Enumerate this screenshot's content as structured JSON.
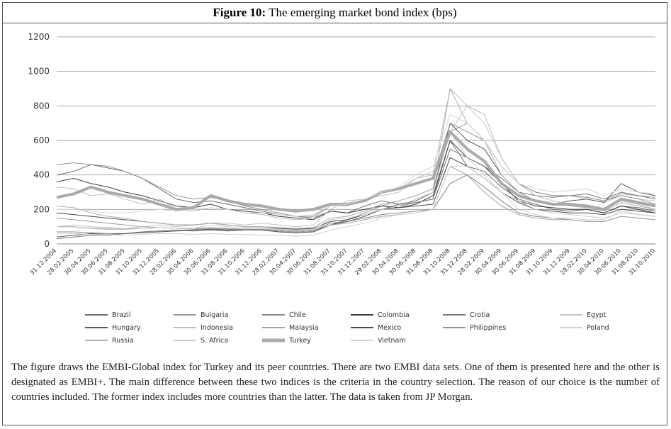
{
  "chart_data": {
    "type": "line",
    "figure_label": "Figure 10:",
    "title": "The emerging market bond index (bps)",
    "categories": [
      "31.12.2004",
      "28.02.2005",
      "30.04.2005",
      "30.06.2005",
      "31.08.2005",
      "31.10.2005",
      "31.12.2005",
      "28.02.2006",
      "30.04.2006",
      "30.06.2006",
      "31.08.2006",
      "31.10.2006",
      "31.12.2006",
      "28.02.2007",
      "30.04.2007",
      "30.06.2007",
      "31.08.2007",
      "31.10.2007",
      "31.12.2007",
      "29.02.2008",
      "30.04.2008",
      "30.06.2008",
      "31.08.2008",
      "31.10.2008",
      "31.12.2008",
      "28.02.2009",
      "30.04.2009",
      "30.06.2009",
      "31.08.2009",
      "31.10.2009",
      "31.12.2009",
      "28.02.2010",
      "30.04.2010",
      "30.06.2010",
      "31.08.2010",
      "31.10.2010"
    ],
    "ylim": [
      0,
      1200
    ],
    "yticks": [
      0,
      200,
      400,
      600,
      800,
      1000,
      1200
    ],
    "grid": true,
    "series": [
      {
        "name": "Brazil",
        "color": "#6e6e6e",
        "width": 1,
        "values": [
          400,
          420,
          460,
          440,
          420,
          380,
          320,
          260,
          240,
          250,
          230,
          210,
          190,
          170,
          160,
          150,
          190,
          180,
          220,
          250,
          230,
          240,
          260,
          600,
          450,
          420,
          330,
          260,
          230,
          200,
          190,
          200,
          180,
          220,
          210,
          190
        ]
      },
      {
        "name": "Bulgaria",
        "color": "#9a9a9a",
        "width": 1,
        "values": [
          150,
          140,
          130,
          120,
          110,
          100,
          95,
          90,
          85,
          90,
          85,
          80,
          80,
          75,
          70,
          75,
          110,
          140,
          180,
          220,
          250,
          280,
          320,
          650,
          700,
          600,
          450,
          350,
          300,
          280,
          280,
          270,
          250,
          290,
          280,
          270
        ]
      },
      {
        "name": "Chile",
        "color": "#888888",
        "width": 1,
        "values": [
          70,
          70,
          65,
          60,
          60,
          70,
          75,
          80,
          80,
          85,
          85,
          80,
          85,
          80,
          75,
          80,
          120,
          130,
          150,
          170,
          180,
          190,
          200,
          350,
          400,
          330,
          250,
          180,
          160,
          150,
          140,
          130,
          130,
          160,
          150,
          140
        ]
      },
      {
        "name": "Colombia",
        "color": "#3c3c3c",
        "width": 1,
        "values": [
          360,
          380,
          350,
          330,
          300,
          280,
          250,
          220,
          210,
          230,
          200,
          190,
          180,
          160,
          150,
          140,
          190,
          180,
          200,
          220,
          210,
          230,
          280,
          600,
          500,
          450,
          350,
          250,
          220,
          210,
          200,
          200,
          180,
          220,
          200,
          180
        ]
      },
      {
        "name": "Crotia",
        "color": "#7a7a7a",
        "width": 1,
        "values": [
          30,
          40,
          50,
          50,
          60,
          70,
          75,
          80,
          75,
          80,
          75,
          80,
          80,
          70,
          65,
          70,
          110,
          140,
          170,
          200,
          220,
          240,
          260,
          550,
          500,
          450,
          380,
          300,
          280,
          270,
          280,
          290,
          260,
          300,
          280,
          260
        ]
      },
      {
        "name": "Egypt",
        "color": "#c4c4c4",
        "width": 1,
        "values": [
          100,
          110,
          100,
          90,
          90,
          100,
          110,
          100,
          110,
          120,
          120,
          110,
          120,
          110,
          100,
          110,
          200,
          250,
          260,
          280,
          300,
          380,
          420,
          650,
          800,
          700,
          500,
          350,
          300,
          280,
          280,
          260,
          240,
          280,
          260,
          250
        ]
      },
      {
        "name": "Hungary",
        "color": "#5a5a5a",
        "width": 1,
        "values": [
          40,
          50,
          60,
          55,
          60,
          65,
          70,
          75,
          80,
          85,
          80,
          85,
          80,
          70,
          65,
          70,
          110,
          130,
          160,
          200,
          230,
          250,
          300,
          700,
          600,
          550,
          400,
          300,
          250,
          230,
          250,
          260,
          240,
          350,
          300,
          280
        ]
      },
      {
        "name": "Indonesia",
        "color": "#bdbdbd",
        "width": 1,
        "values": [
          330,
          320,
          280,
          290,
          260,
          230,
          260,
          200,
          190,
          210,
          200,
          180,
          170,
          150,
          140,
          150,
          220,
          220,
          250,
          300,
          320,
          380,
          400,
          900,
          800,
          750,
          500,
          350,
          280,
          250,
          230,
          220,
          200,
          250,
          230,
          200
        ]
      },
      {
        "name": "Malaysia",
        "color": "#a5a5a5",
        "width": 1,
        "values": [
          100,
          100,
          90,
          85,
          85,
          90,
          95,
          90,
          90,
          95,
          90,
          85,
          85,
          80,
          75,
          80,
          110,
          120,
          140,
          160,
          170,
          180,
          200,
          450,
          400,
          300,
          220,
          170,
          150,
          140,
          140,
          130,
          130,
          160,
          150,
          140
        ]
      },
      {
        "name": "Mexico",
        "color": "#4a4a4a",
        "width": 1,
        "values": [
          180,
          170,
          160,
          150,
          140,
          130,
          120,
          110,
          110,
          120,
          110,
          100,
          100,
          90,
          85,
          90,
          130,
          140,
          170,
          200,
          210,
          220,
          230,
          500,
          450,
          380,
          300,
          240,
          200,
          190,
          180,
          180,
          170,
          200,
          190,
          180
        ]
      },
      {
        "name": "Philippines",
        "color": "#939393",
        "width": 1,
        "values": [
          460,
          470,
          460,
          450,
          420,
          380,
          330,
          280,
          260,
          270,
          250,
          220,
          200,
          180,
          160,
          160,
          220,
          230,
          250,
          300,
          320,
          350,
          380,
          700,
          650,
          600,
          450,
          350,
          300,
          280,
          280,
          270,
          250,
          280,
          260,
          230
        ]
      },
      {
        "name": "Poland",
        "color": "#d0d0d0",
        "width": 1,
        "values": [
          60,
          60,
          55,
          55,
          50,
          55,
          60,
          60,
          55,
          60,
          55,
          55,
          50,
          50,
          45,
          50,
          80,
          100,
          120,
          150,
          170,
          180,
          200,
          450,
          450,
          380,
          300,
          200,
          170,
          150,
          150,
          140,
          140,
          190,
          170,
          160
        ]
      },
      {
        "name": "Russia",
        "color": "#b0b0b0",
        "width": 1,
        "values": [
          220,
          210,
          180,
          160,
          150,
          130,
          120,
          110,
          110,
          120,
          110,
          100,
          100,
          95,
          90,
          95,
          150,
          160,
          190,
          230,
          250,
          280,
          320,
          900,
          700,
          600,
          400,
          300,
          250,
          230,
          220,
          210,
          190,
          240,
          220,
          200
        ]
      },
      {
        "name": "S. Africa",
        "color": "#cccccc",
        "width": 1,
        "values": [
          100,
          110,
          100,
          95,
          90,
          90,
          95,
          90,
          90,
          110,
          100,
          90,
          90,
          85,
          80,
          85,
          140,
          150,
          170,
          200,
          220,
          260,
          300,
          650,
          500,
          400,
          300,
          250,
          200,
          180,
          170,
          160,
          150,
          180,
          170,
          160
        ]
      },
      {
        "name": "Turkey",
        "color": "#aaaaaa",
        "width": 4,
        "values": [
          270,
          290,
          330,
          300,
          280,
          260,
          230,
          200,
          210,
          280,
          250,
          230,
          220,
          200,
          190,
          200,
          230,
          230,
          250,
          300,
          320,
          350,
          380,
          650,
          550,
          480,
          350,
          280,
          250,
          230,
          230,
          220,
          200,
          260,
          240,
          220
        ]
      },
      {
        "name": "Vietnam",
        "color": "#d6d6d6",
        "width": 1,
        "values": [
          200,
          200,
          190,
          180,
          180,
          190,
          200,
          190,
          200,
          210,
          200,
          180,
          180,
          170,
          160,
          170,
          220,
          230,
          260,
          300,
          330,
          400,
          450,
          750,
          700,
          600,
          450,
          350,
          320,
          300,
          310,
          320,
          280,
          320,
          300,
          290
        ]
      }
    ]
  },
  "caption": "The figure draws the EMBI-Global index for Turkey and its peer countries. There are two EMBI data sets. One of them is presented here and the other is designated as EMBI+. The main difference between these two indices is the criteria in the country selection. The reason of our choice is the number of countries included. The former index includes more countries than the latter. The data is taken from JP Morgan."
}
